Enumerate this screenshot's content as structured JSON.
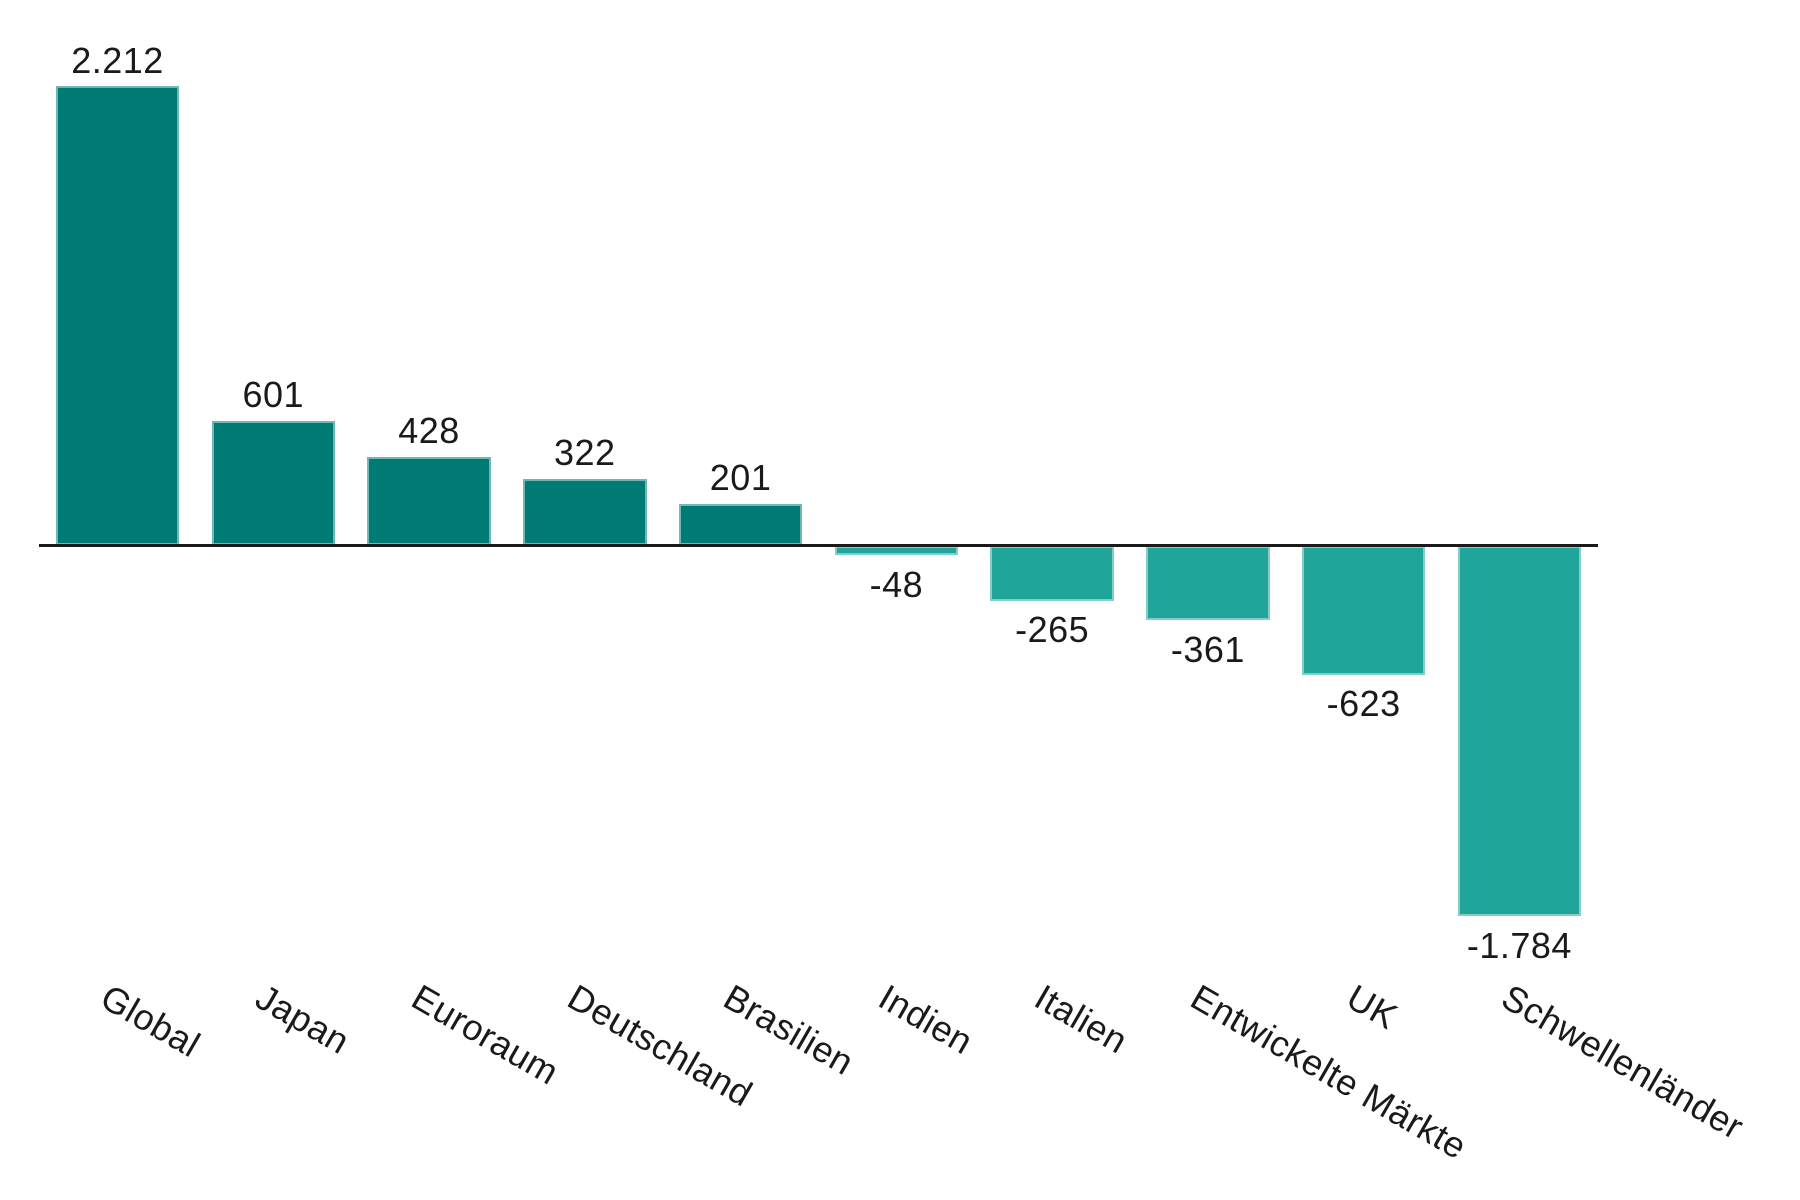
{
  "chart_data": {
    "type": "bar",
    "title": "",
    "xlabel": "",
    "ylabel": "",
    "categories": [
      "Global",
      "Japan",
      "Euroraum",
      "Deutschland",
      "Brasilien",
      "Indien",
      "Italien",
      "Entwickelte Märkte",
      "UK",
      "Schwellenländer"
    ],
    "values": [
      2212,
      601,
      428,
      322,
      201,
      -48,
      -265,
      -361,
      -623,
      -1784
    ],
    "value_labels": [
      "2.212",
      "601",
      "428",
      "322",
      "201",
      "-48",
      "-265",
      "-361",
      "-623",
      "-1.784"
    ],
    "number_format": "de-DE (dot as thousands separator)",
    "ylim": [
      -1900,
      2350
    ],
    "grid": false,
    "legend": false,
    "y_axis_visible": false,
    "zero_line_visible": true,
    "tick_label_rotation_deg": 30,
    "colors": {
      "positive_bar": "#007a74",
      "negative_bar": "#20a59b",
      "axis_line": "#1a1a1a",
      "text": "#1a1a1a",
      "background": "#ffffff"
    }
  }
}
